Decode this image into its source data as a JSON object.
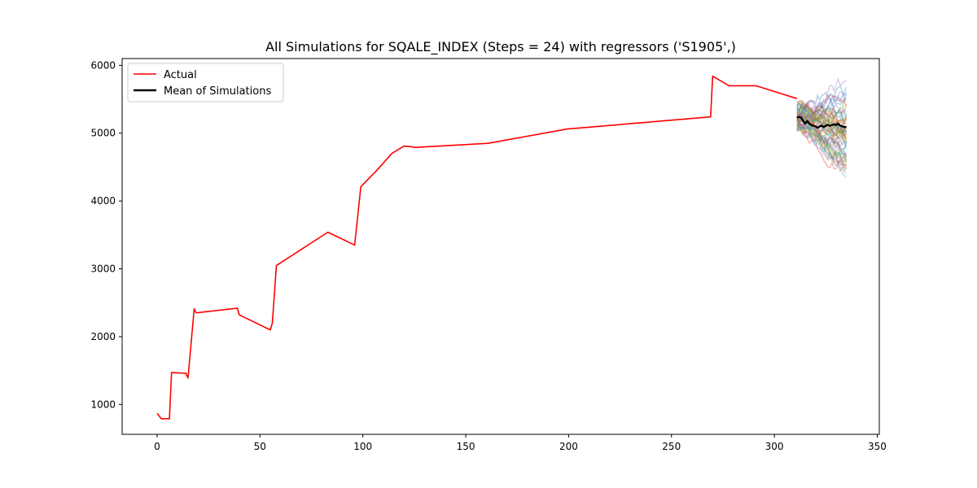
{
  "chart_data": {
    "type": "line",
    "title": "All Simulations for SQALE_INDEX (Steps = 24) with regressors ('S1905',)",
    "xlabel": "",
    "ylabel": "",
    "xlim": [
      -17,
      351
    ],
    "ylim": [
      560,
      6100
    ],
    "x_ticks": [
      0,
      50,
      100,
      150,
      200,
      250,
      300,
      350
    ],
    "y_ticks": [
      1000,
      2000,
      3000,
      4000,
      5000,
      6000
    ],
    "grid": false,
    "legend_position": "top-left",
    "series": [
      {
        "name": "Actual",
        "color": "#ff0000",
        "x": [
          0,
          2,
          6,
          7,
          14,
          15,
          18,
          19,
          39,
          40,
          55,
          56,
          58,
          83,
          96,
          99,
          107,
          114,
          120,
          126,
          161,
          199,
          269,
          270,
          278,
          291,
          311
        ],
        "y": [
          870,
          790,
          790,
          1470,
          1460,
          1390,
          2410,
          2350,
          2420,
          2320,
          2100,
          2200,
          3050,
          3540,
          3350,
          4210,
          4460,
          4700,
          4810,
          4790,
          4850,
          5060,
          5240,
          5840,
          5700,
          5700,
          5510
        ]
      },
      {
        "name": "Mean of Simulations",
        "color": "#000000",
        "x": [
          311,
          312,
          313,
          314,
          315,
          316,
          317,
          318,
          319,
          320,
          321,
          322,
          323,
          324,
          325,
          326,
          327,
          328,
          329,
          330,
          331,
          332,
          333,
          334,
          335
        ],
        "y": [
          5230,
          5240,
          5230,
          5180,
          5140,
          5180,
          5140,
          5120,
          5110,
          5100,
          5080,
          5100,
          5110,
          5090,
          5110,
          5120,
          5110,
          5120,
          5130,
          5120,
          5140,
          5110,
          5100,
          5090,
          5090
        ]
      }
    ],
    "simulations": {
      "x_start": 311,
      "steps": 24,
      "colors": [
        "#1f77b4",
        "#ff7f0e",
        "#2ca02c",
        "#d62728",
        "#9467bd",
        "#8c564b",
        "#e377c2",
        "#7f7f7f",
        "#bcbd22",
        "#17becf"
      ],
      "count": 60,
      "range_start": [
        5050,
        5450
      ],
      "range_end": [
        4400,
        5780
      ]
    }
  }
}
